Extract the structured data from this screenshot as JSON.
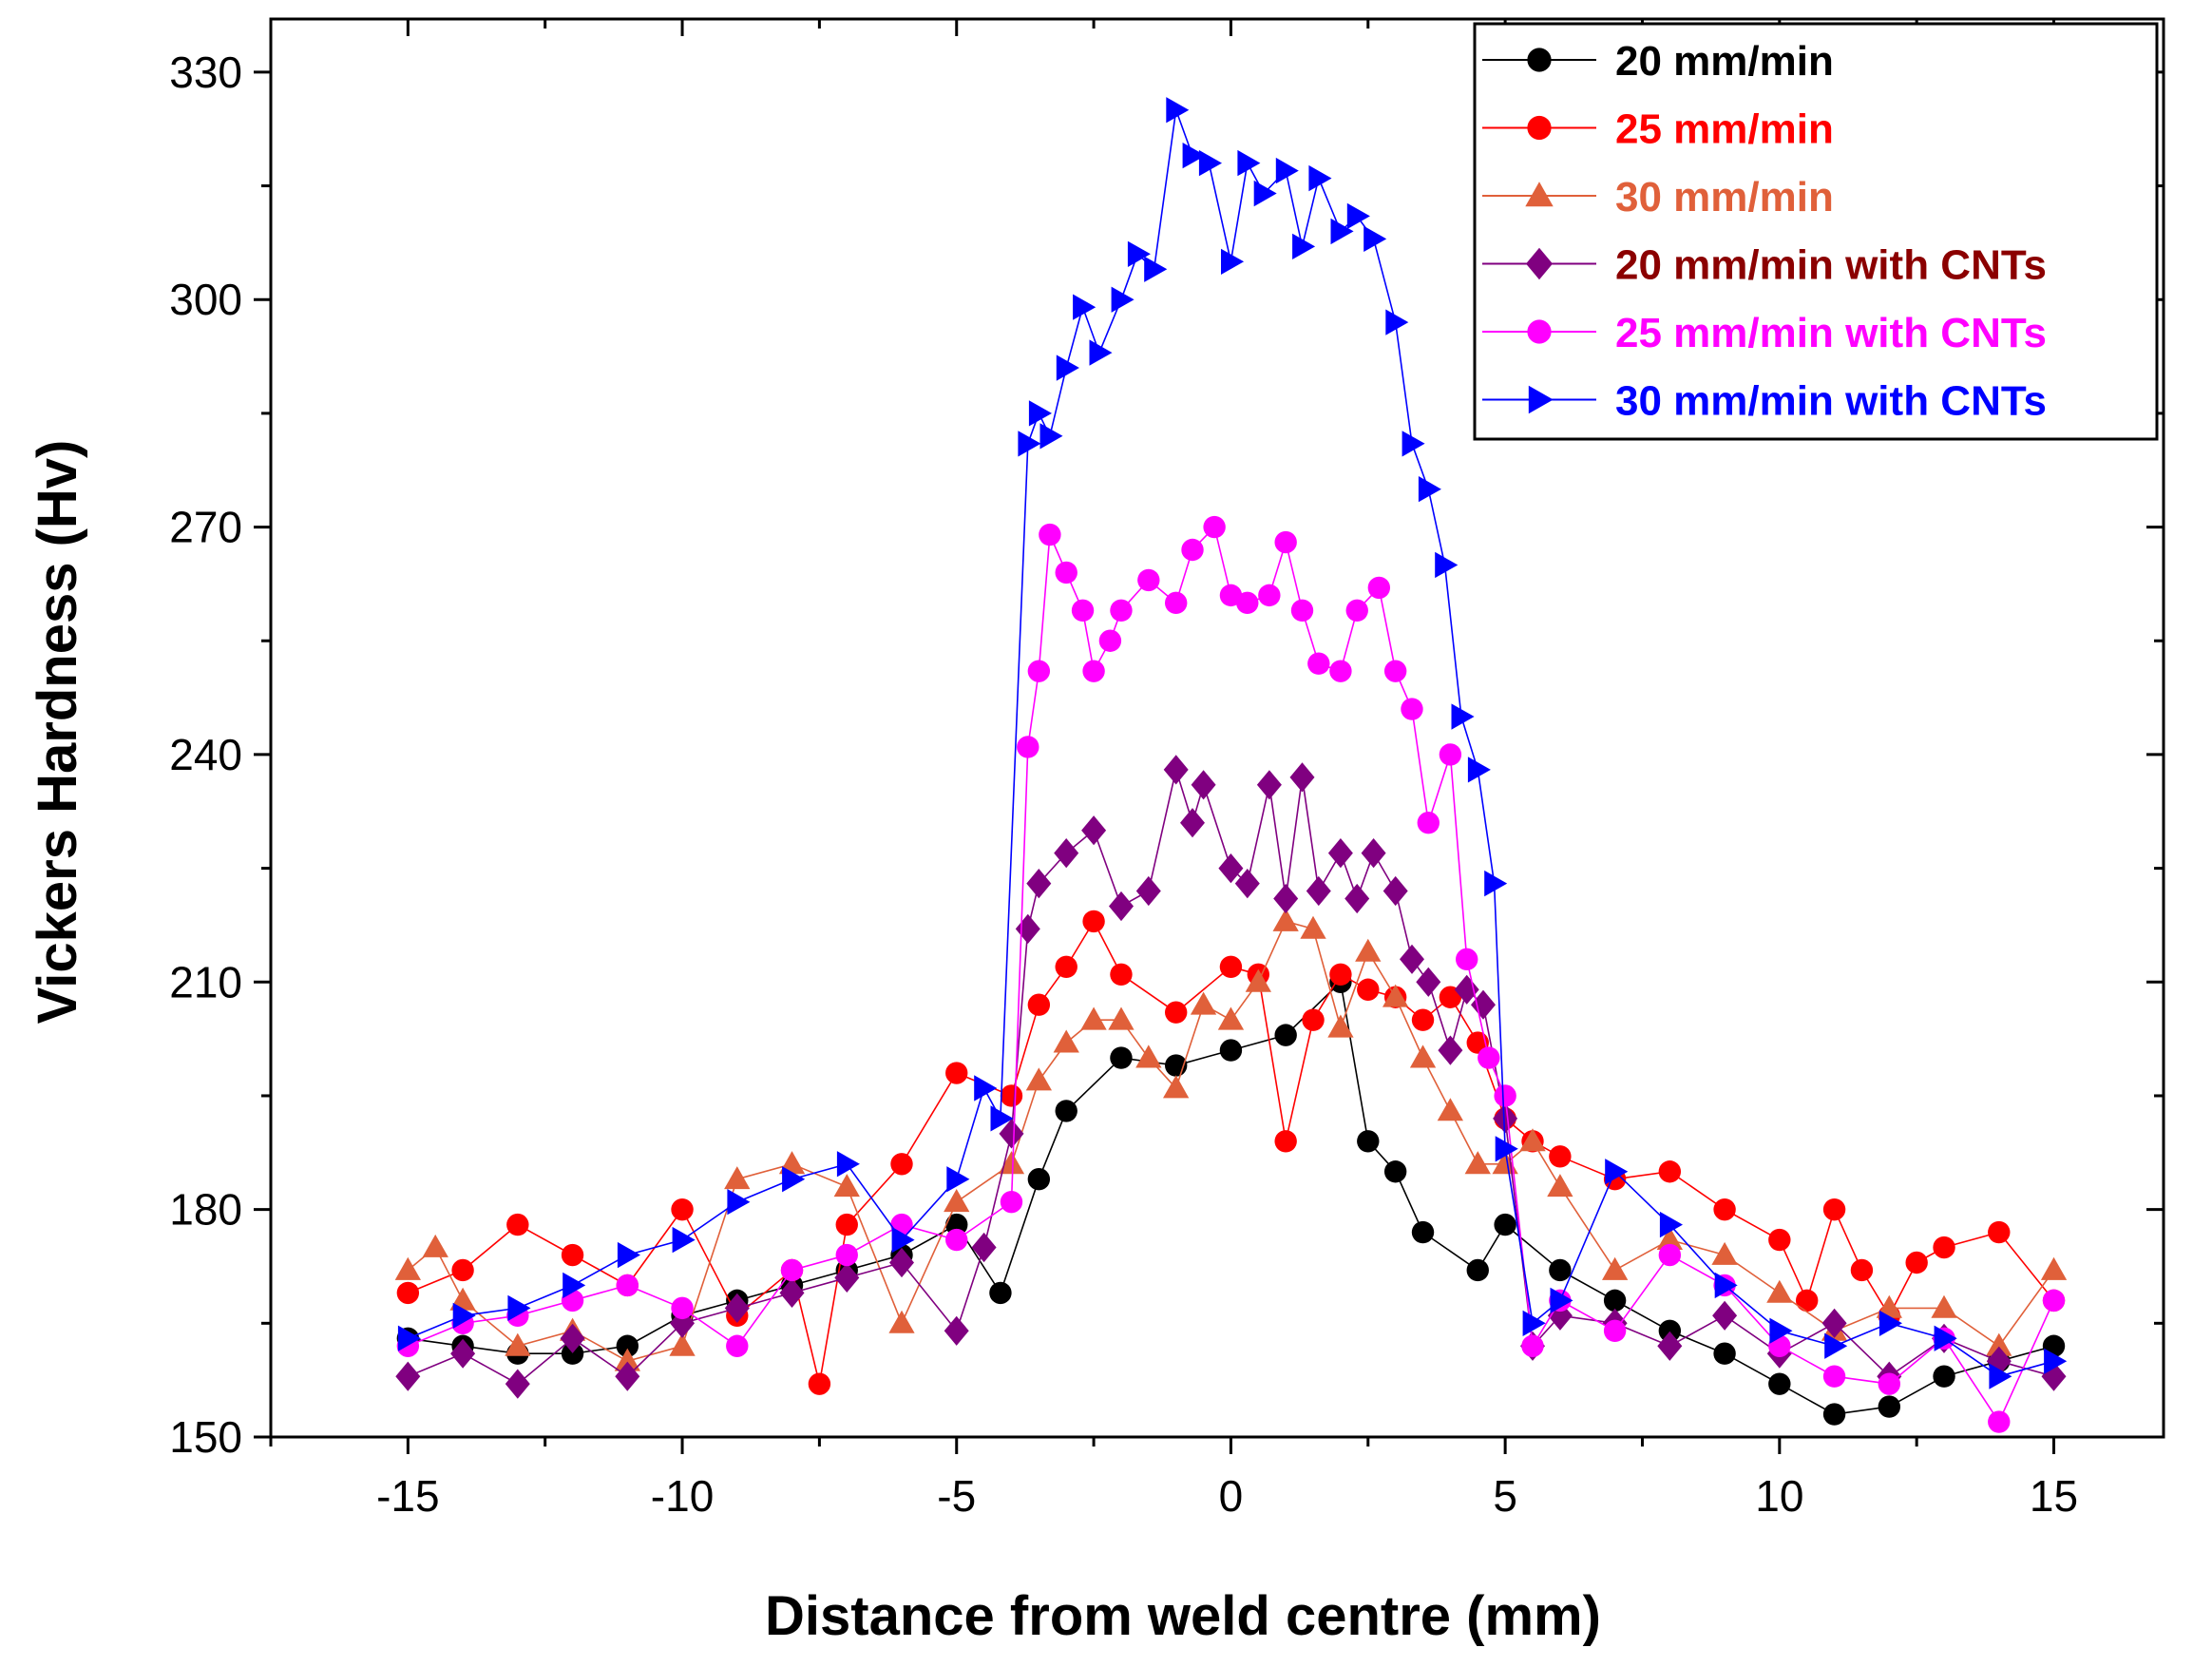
{
  "chart_data": {
    "type": "line",
    "xlabel": "Distance from weld centre (mm)",
    "ylabel": "Vickers Hardness (Hv)",
    "xlim": [
      -17.5,
      17
    ],
    "ylim": [
      150,
      337
    ],
    "xticks": [
      -15,
      -10,
      -5,
      0,
      5,
      10,
      15
    ],
    "yticks": [
      150,
      180,
      210,
      240,
      270,
      300,
      330
    ],
    "legend_position": "top-right",
    "grid": false,
    "series": [
      {
        "name": "20 mm/min",
        "color": "#000000",
        "marker": "circle",
        "x": [
          -15,
          -14,
          -13,
          -12,
          -11,
          -10,
          -9,
          -8,
          -7,
          -6,
          -5,
          -4.2,
          -3.5,
          -3,
          -2,
          -1,
          0,
          1,
          2,
          2.5,
          3,
          3.5,
          4.5,
          5,
          6,
          7,
          8,
          9,
          10,
          11,
          12,
          13,
          14,
          15
        ],
        "y": [
          163,
          162,
          161,
          161,
          162,
          166,
          168,
          170,
          172,
          174,
          178,
          169,
          184,
          193,
          200,
          199,
          201,
          203,
          210,
          189,
          185,
          177,
          172,
          178,
          172,
          168,
          164,
          161,
          157,
          153,
          154,
          158,
          160,
          162
        ]
      },
      {
        "name": "25 mm/min",
        "color": "#ff0000",
        "marker": "circle",
        "x": [
          -15,
          -14,
          -13,
          -12,
          -11,
          -10,
          -9,
          -8,
          -7.5,
          -7,
          -6,
          -5,
          -4,
          -3.5,
          -3,
          -2.5,
          -2,
          -1,
          0,
          0.5,
          1,
          1.5,
          2,
          2.5,
          3,
          3.5,
          4,
          4.5,
          5,
          5.5,
          6,
          7,
          8,
          9,
          10,
          10.5,
          11,
          11.5,
          12,
          12.5,
          13,
          14,
          15
        ],
        "y": [
          169,
          172,
          178,
          174,
          170,
          180,
          166,
          172,
          157,
          178,
          186,
          198,
          195,
          207,
          212,
          218,
          211,
          206,
          212,
          211,
          189,
          205,
          211,
          209,
          208,
          205,
          208,
          202,
          192,
          189,
          187,
          184,
          185,
          180,
          176,
          168,
          180,
          172,
          166,
          173,
          175,
          177,
          168
        ]
      },
      {
        "name": "30 mm/min",
        "color": "#e0603a",
        "marker": "triangle",
        "x": [
          -15,
          -14.5,
          -14,
          -13,
          -12,
          -11,
          -10,
          -9,
          -8,
          -7,
          -6,
          -5,
          -4,
          -3.5,
          -3,
          -2.5,
          -2,
          -1.5,
          -1,
          -0.5,
          0,
          0.5,
          1,
          1.5,
          2,
          2.5,
          3,
          3.5,
          4,
          4.5,
          5,
          5.5,
          6,
          7,
          8,
          9,
          10,
          11,
          12,
          13,
          14,
          15
        ],
        "y": [
          172,
          175,
          168,
          162,
          164,
          160,
          162,
          184,
          186,
          183,
          165,
          181,
          186,
          197,
          202,
          205,
          205,
          200,
          196,
          207,
          205,
          210,
          218,
          217,
          204,
          214,
          208,
          200,
          193,
          186,
          186,
          189,
          183,
          172,
          176,
          174,
          169,
          164,
          167,
          167,
          162,
          172
        ]
      },
      {
        "name": "20 mm/min with CNTs",
        "color": "#800080",
        "legend_text_color": "#8b0000",
        "marker": "diamond",
        "x": [
          -15,
          -14,
          -13,
          -12,
          -11,
          -10,
          -9,
          -8,
          -7,
          -6,
          -5,
          -4.5,
          -4,
          -3.7,
          -3.5,
          -3,
          -2.5,
          -2,
          -1.5,
          -1,
          -0.7,
          -0.5,
          0,
          0.3,
          0.7,
          1,
          1.3,
          1.6,
          2,
          2.3,
          2.6,
          3,
          3.3,
          3.6,
          4,
          4.3,
          4.6,
          5,
          5.5,
          6,
          7,
          8,
          9,
          10,
          11,
          12,
          13,
          14,
          15
        ],
        "y": [
          158,
          161,
          157,
          163,
          158,
          165,
          167,
          169,
          171,
          173,
          164,
          175,
          190,
          217,
          223,
          227,
          230,
          220,
          222,
          238,
          231,
          236,
          225,
          223,
          236,
          221,
          237,
          222,
          227,
          221,
          227,
          222,
          213,
          210,
          201,
          209,
          207,
          192,
          162,
          166,
          165,
          162,
          166,
          161,
          165,
          158,
          163,
          160,
          158
        ]
      },
      {
        "name": "25 mm/min with CNTs",
        "color": "#ff00ff",
        "marker": "circle",
        "x": [
          -15,
          -14,
          -13,
          -12,
          -11,
          -10,
          -9,
          -8,
          -7,
          -6,
          -5,
          -4,
          -3.7,
          -3.5,
          -3.3,
          -3,
          -2.7,
          -2.5,
          -2.2,
          -2,
          -1.5,
          -1,
          -0.7,
          -0.3,
          0,
          0.3,
          0.7,
          1,
          1.3,
          1.6,
          2,
          2.3,
          2.7,
          3,
          3.3,
          3.6,
          4,
          4.3,
          4.7,
          5,
          5.5,
          6,
          7,
          8,
          9,
          10,
          11,
          12,
          13,
          14,
          15
        ],
        "y": [
          162,
          165,
          166,
          168,
          170,
          167,
          162,
          172,
          174,
          178,
          176,
          181,
          241,
          251,
          269,
          264,
          259,
          251,
          255,
          259,
          263,
          260,
          267,
          270,
          261,
          260,
          261,
          268,
          259,
          252,
          251,
          259,
          262,
          251,
          246,
          231,
          240,
          213,
          200,
          195,
          162,
          168,
          164,
          174,
          170,
          162,
          158,
          157,
          163,
          152,
          168
        ]
      },
      {
        "name": "30 mm/min with CNTs",
        "color": "#0000ff",
        "marker": "triangle-right",
        "x": [
          -15,
          -14,
          -13,
          -12,
          -11,
          -10,
          -9,
          -8,
          -7,
          -6,
          -5,
          -4.5,
          -4.2,
          -3.7,
          -3.5,
          -3.3,
          -3,
          -2.7,
          -2.4,
          -2,
          -1.7,
          -1.4,
          -1,
          -0.7,
          -0.4,
          0,
          0.3,
          0.6,
          1,
          1.3,
          1.6,
          2,
          2.3,
          2.6,
          3,
          3.3,
          3.6,
          3.9,
          4.2,
          4.5,
          4.8,
          5,
          5.5,
          6,
          7,
          8,
          9,
          10,
          11,
          12,
          13,
          14,
          15
        ],
        "y": [
          163,
          166,
          167,
          170,
          174,
          176,
          181,
          184,
          186,
          176,
          184,
          196,
          192,
          281,
          285,
          282,
          291,
          299,
          293,
          300,
          306,
          304,
          325,
          319,
          318,
          305,
          318,
          314,
          317,
          307,
          316,
          309,
          311,
          308,
          297,
          281,
          275,
          265,
          245,
          238,
          223,
          188,
          165,
          168,
          185,
          178,
          170,
          164,
          162,
          165,
          163,
          158,
          160
        ]
      }
    ]
  }
}
